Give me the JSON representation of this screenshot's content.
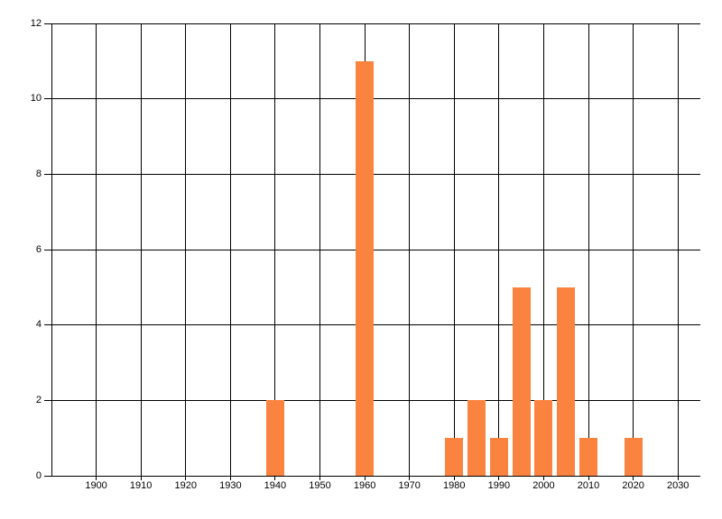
{
  "chart_data": {
    "type": "bar",
    "title": "",
    "xlabel": "",
    "ylabel": "",
    "x": [
      1940,
      1960,
      1980,
      1985,
      1990,
      1995,
      2000,
      2005,
      2010,
      2020
    ],
    "values": [
      2,
      11,
      1,
      2,
      1,
      5,
      2,
      5,
      1,
      1
    ],
    "xlim": [
      1890,
      2035
    ],
    "ylim": [
      0,
      12
    ],
    "x_ticks": [
      "1900",
      "1910",
      "1920",
      "1930",
      "1940",
      "1950",
      "1960",
      "1970",
      "1980",
      "1990",
      "2000",
      "2010",
      "2020",
      "2030"
    ],
    "x_tick_years": [
      1900,
      1910,
      1920,
      1930,
      1940,
      1950,
      1960,
      1970,
      1980,
      1990,
      2000,
      2010,
      2020,
      2030
    ],
    "y_ticks": [
      "0",
      "2",
      "4",
      "6",
      "8",
      "10",
      "12"
    ],
    "y_tick_values": [
      0,
      2,
      4,
      6,
      8,
      10,
      12
    ],
    "bar_color": "#FB8340",
    "grid_color": "#000000",
    "axis_color": "#000000",
    "label_color": "#000000",
    "background_color": "#FFFFFF",
    "grid": true,
    "legend": "none"
  }
}
